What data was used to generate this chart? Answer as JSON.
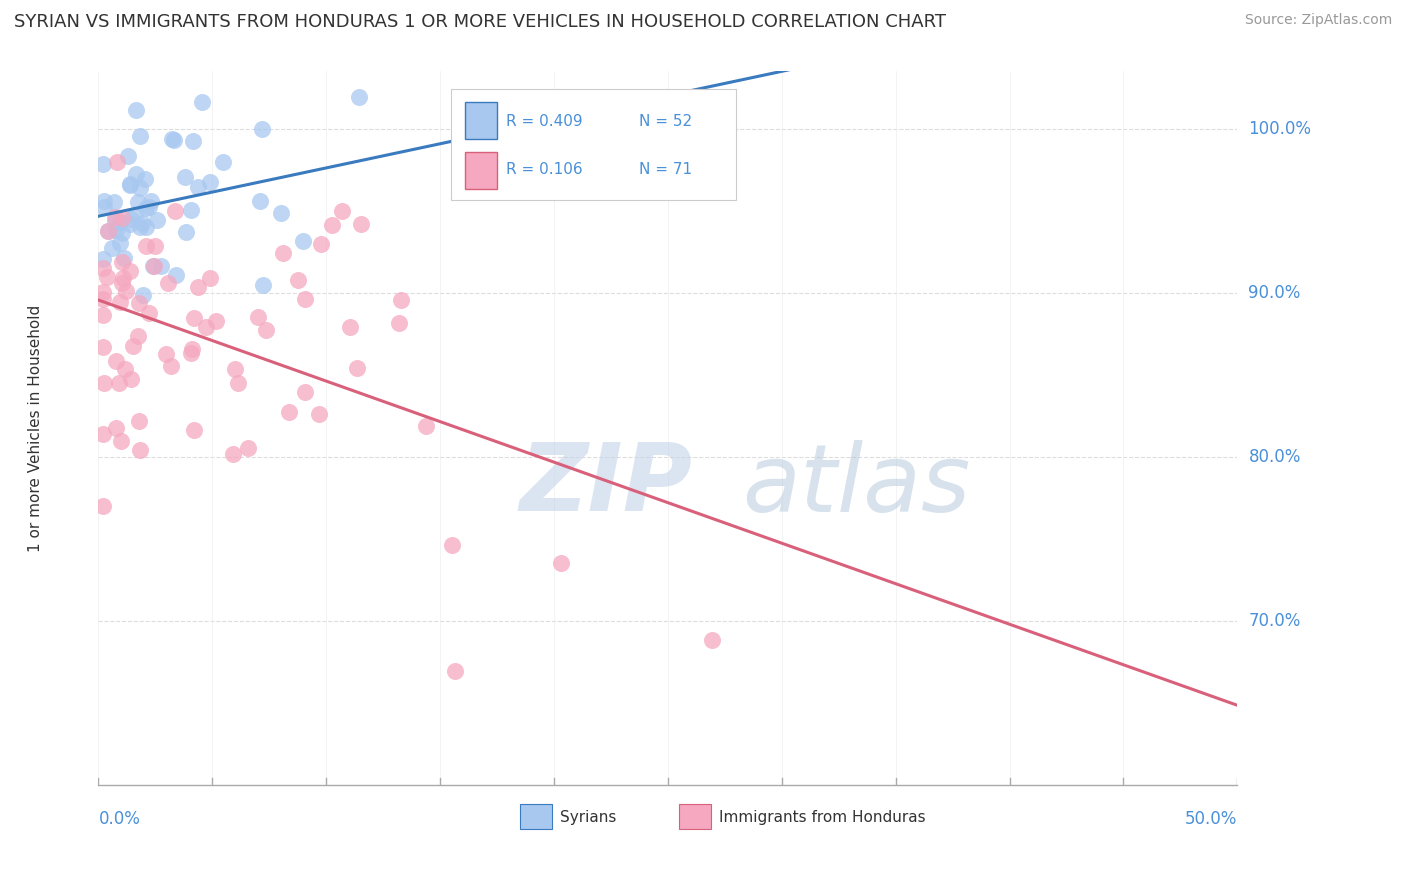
{
  "title": "SYRIAN VS IMMIGRANTS FROM HONDURAS 1 OR MORE VEHICLES IN HOUSEHOLD CORRELATION CHART",
  "source": "Source: ZipAtlas.com",
  "ylabel_label": "1 or more Vehicles in Household",
  "xmin": 0.0,
  "xmax": 50.0,
  "ymin": 60.0,
  "ymax": 103.5,
  "R_syrians": 0.409,
  "N_syrians": 52,
  "R_honduras": 0.106,
  "N_honduras": 71,
  "syrians_color": "#a8c8f0",
  "honduras_color": "#f5a8c0",
  "syrians_line_color": "#3a7abf",
  "honduras_line_color": "#d9607a",
  "watermark_zip_color": "#c8d8ee",
  "watermark_atlas_color": "#b0c8e0",
  "background_color": "#ffffff",
  "legend_box_color": "#f0f0f8",
  "legend_border_color": "#cccccc",
  "grid_color": "#dddddd",
  "ytick_color": "#4a90d9",
  "xtick_color": "#4a90d9"
}
